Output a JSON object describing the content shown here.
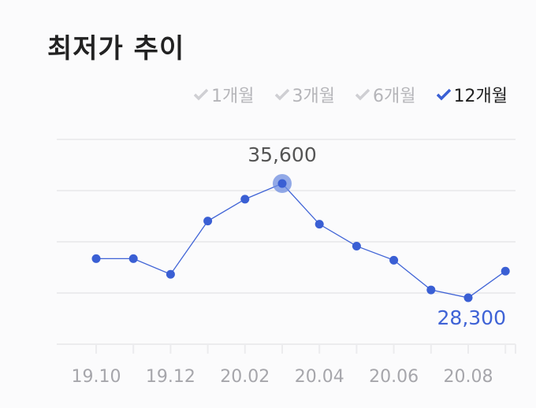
{
  "title": "최저가 추이",
  "periods": [
    {
      "label": "1개월",
      "active": false
    },
    {
      "label": "3개월",
      "active": false
    },
    {
      "label": "6개월",
      "active": false
    },
    {
      "label": "12개월",
      "active": true
    }
  ],
  "colors": {
    "line": "#3f63d6",
    "point": "#3a5fd4",
    "highlight": "#6f8de0",
    "max_label": "#555555",
    "min_label": "#3f63d6",
    "grid": "#ececee",
    "inactive_check": "#cfcfd3",
    "active_check": "#3a5fd4"
  },
  "chart_data": {
    "type": "line",
    "x": [
      "19.10",
      "19.11",
      "19.12",
      "20.01",
      "20.02",
      "20.03",
      "20.04",
      "20.05",
      "20.06",
      "20.07",
      "20.08",
      "20.09"
    ],
    "values": [
      30800,
      30800,
      29800,
      33200,
      34600,
      35600,
      33000,
      31600,
      30700,
      28800,
      28300,
      30000
    ],
    "tick_labels": [
      "19.10",
      "19.12",
      "20.02",
      "20.04",
      "20.06",
      "20.08"
    ],
    "annotations": [
      {
        "index": 5,
        "text": "35,600",
        "kind": "max"
      },
      {
        "index": 10,
        "text": "28,300",
        "kind": "min"
      }
    ],
    "grid": true,
    "legend": "none"
  }
}
